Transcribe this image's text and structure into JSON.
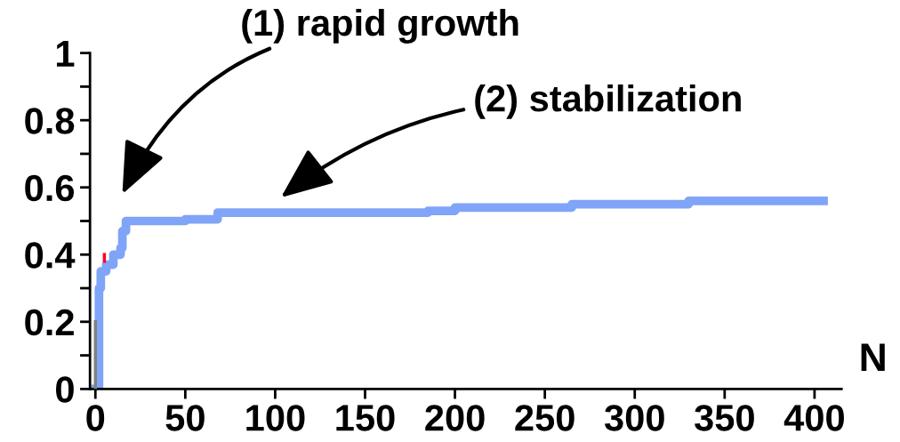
{
  "chart_data": {
    "type": "step",
    "xlabel": "N",
    "xlim": [
      -3,
      415
    ],
    "ylim": [
      0,
      1
    ],
    "xticks": [
      0,
      50,
      100,
      150,
      200,
      250,
      300,
      350,
      400
    ],
    "yticks": [
      0,
      {
        "value": 0.1,
        "label": null
      },
      0.2,
      {
        "value": 0.3,
        "label": null
      },
      0.4,
      {
        "value": 0.5,
        "label": null
      },
      0.6,
      {
        "value": 0.7,
        "label": null
      },
      0.8,
      {
        "value": 0.9,
        "label": null
      },
      1
    ],
    "grid": false,
    "legend": false,
    "marker": "none",
    "line_style": "solid",
    "series": [
      {
        "color": "#7fa4f8",
        "x": [
          0,
          2,
          3,
          6,
          10,
          14,
          15,
          17,
          50,
          68,
          185,
          200,
          265,
          330,
          405
        ],
        "values": [
          0,
          0.3,
          0.35,
          0.37,
          0.4,
          0.42,
          0.47,
          0.5,
          0.505,
          0.525,
          0.53,
          0.54,
          0.55,
          0.56,
          0.56
        ]
      },
      {
        "color": "#808080",
        "x": [
          0,
          0
        ],
        "values": [
          0,
          0.2
        ]
      },
      {
        "color": "#ff0022",
        "x": [
          5,
          5
        ],
        "values": [
          0.38,
          0.4
        ]
      }
    ],
    "annotations": [
      "(1) rapid growth",
      "(2) stabilization"
    ]
  }
}
